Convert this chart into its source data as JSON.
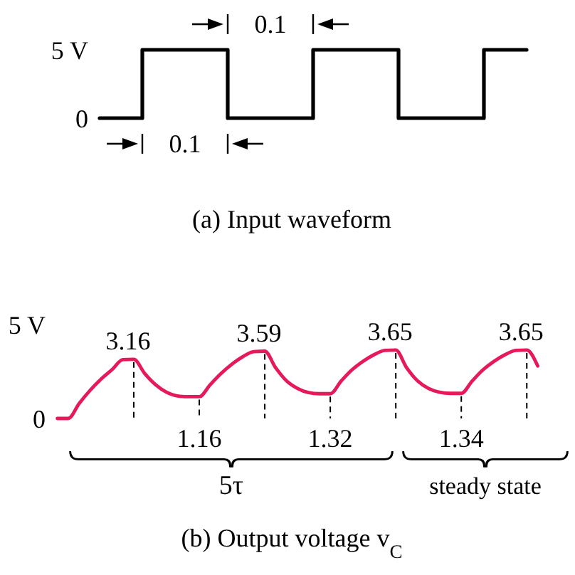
{
  "chart_data": [
    {
      "type": "step",
      "title": "(a) Input waveform",
      "categories": [
        null,
        null,
        null,
        null,
        null,
        null,
        null,
        null,
        null,
        null,
        null
      ],
      "values": [
        0,
        5,
        5,
        0,
        0,
        5,
        5,
        0,
        0,
        5,
        5
      ],
      "color": "#000000",
      "ylim": [
        0,
        5
      ],
      "yticks": [
        {
          "value": 5,
          "label": "5 V"
        },
        0
      ],
      "tick_labels": "y",
      "annotations": [
        "0.1",
        "0.1"
      ]
    },
    {
      "type": "line",
      "title": "(b) Output voltage v$_{C}$",
      "categories": [
        null,
        null,
        null,
        null,
        null,
        null,
        null,
        null,
        null,
        null,
        null,
        null,
        null,
        null,
        null,
        null,
        null,
        null,
        null,
        null,
        null,
        null,
        null,
        null,
        null,
        null,
        null,
        null,
        null,
        null,
        null,
        null,
        null,
        null,
        null,
        null,
        null,
        null,
        null,
        null,
        null,
        null,
        null,
        null,
        null
      ],
      "values": [
        0,
        0,
        0.8,
        1.5,
        2.1,
        2.6,
        3.14,
        3.16,
        2.4,
        1.8,
        1.4,
        1.2,
        1.16,
        1.16,
        1.8,
        2.4,
        2.9,
        3.3,
        3.57,
        3.59,
        2.7,
        2.0,
        1.6,
        1.38,
        1.32,
        1.32,
        2.0,
        2.6,
        3.05,
        3.4,
        3.63,
        3.65,
        2.7,
        2.0,
        1.6,
        1.4,
        1.34,
        1.34,
        2.0,
        2.6,
        3.05,
        3.4,
        3.63,
        3.65,
        2.8
      ],
      "value_labels": [
        null,
        null,
        null,
        null,
        null,
        null,
        null,
        "3.16",
        null,
        null,
        null,
        null,
        null,
        "1.16",
        null,
        null,
        null,
        null,
        null,
        "3.59",
        null,
        null,
        null,
        null,
        null,
        "1.32",
        null,
        null,
        null,
        null,
        null,
        "3.65",
        null,
        null,
        null,
        null,
        null,
        "1.34",
        null,
        null,
        null,
        null,
        null,
        "3.65",
        null
      ],
      "color": "#e6195a",
      "ylim": [
        0,
        5
      ],
      "yticks": [
        {
          "value": 5,
          "label": "5 V"
        },
        0
      ],
      "tick_labels": "y",
      "annotations": [
        "5τ",
        "steady state"
      ]
    }
  ]
}
